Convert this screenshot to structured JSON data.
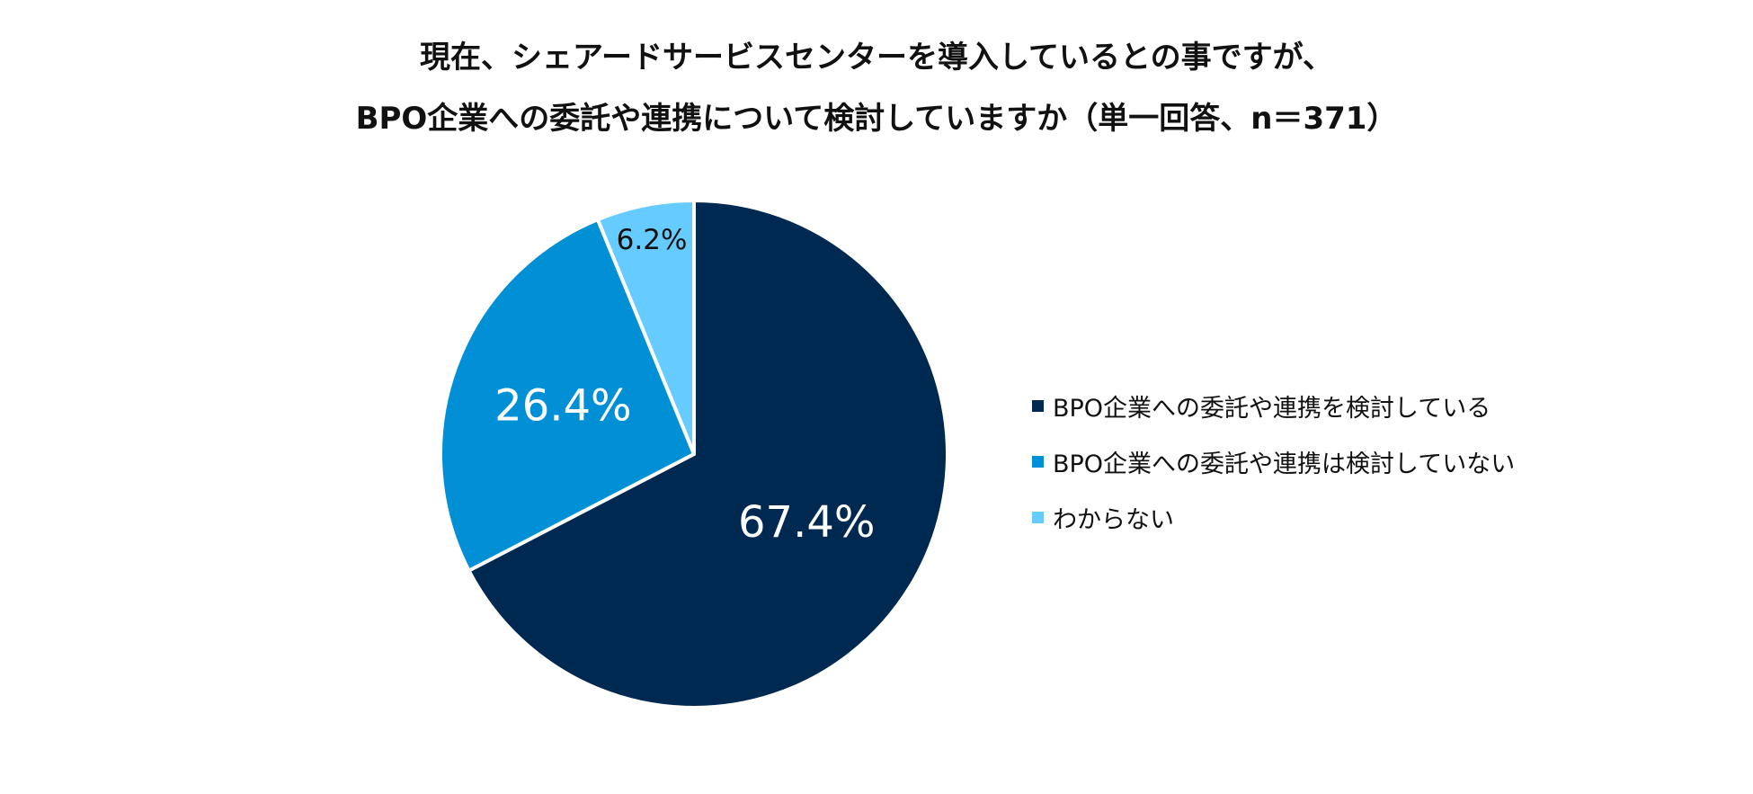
{
  "chart_data": {
    "type": "pie",
    "title": [
      "現在、シェアードサービスセンターを導入しているとの事ですが、",
      "BPO企業への委託や連携について検討していますか（単一回答、n＝371）"
    ],
    "categories": [
      "BPO企業への委託や連携を検討している",
      "BPO企業への委託や連携は検討していない",
      "わからない"
    ],
    "values": [
      67.4,
      26.4,
      6.2
    ],
    "value_labels": [
      "67.4%",
      "26.4%",
      "6.2%"
    ],
    "colors": [
      "#002952",
      "#0190d6",
      "#66ccff"
    ],
    "label_colors": [
      "#ffffff",
      "#ffffff",
      "#111111"
    ],
    "start_angle_deg": 0,
    "direction": "clockwise",
    "legend_position": "right"
  }
}
